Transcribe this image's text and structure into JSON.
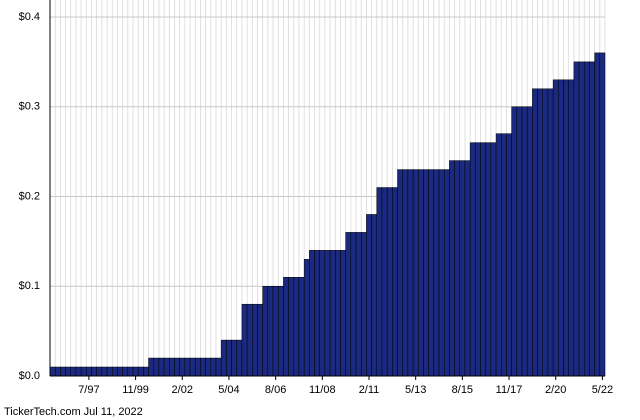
{
  "chart_data": {
    "type": "bar",
    "footer": "TickerTech.com  Jul 11, 2022",
    "categories": [
      null,
      null,
      null,
      null,
      null,
      null,
      null,
      "7/97",
      null,
      null,
      null,
      null,
      null,
      null,
      null,
      null,
      "11/99",
      null,
      null,
      null,
      null,
      null,
      null,
      null,
      null,
      "2/02",
      null,
      null,
      null,
      null,
      null,
      null,
      null,
      null,
      "5/04",
      null,
      null,
      null,
      null,
      null,
      null,
      null,
      null,
      "8/06",
      null,
      null,
      null,
      null,
      null,
      null,
      null,
      null,
      "11/08",
      null,
      null,
      null,
      null,
      null,
      null,
      null,
      null,
      "2/11",
      null,
      null,
      null,
      null,
      null,
      null,
      null,
      null,
      "5/13",
      null,
      null,
      null,
      null,
      null,
      null,
      null,
      null,
      "8/15",
      null,
      null,
      null,
      null,
      null,
      null,
      null,
      null,
      "11/17",
      null,
      null,
      null,
      null,
      null,
      null,
      null,
      null,
      "2/20",
      null,
      null,
      null,
      null,
      null,
      null,
      null,
      null,
      "5/22"
    ],
    "values": [
      0.01,
      0.01,
      0.01,
      0.01,
      0.01,
      0.01,
      0.01,
      0.01,
      0.01,
      0.01,
      0.01,
      0.01,
      0.01,
      0.01,
      0.01,
      0.01,
      0.01,
      0.01,
      0.01,
      0.02,
      0.02,
      0.02,
      0.02,
      0.02,
      0.02,
      0.02,
      0.02,
      0.02,
      0.02,
      0.02,
      0.02,
      0.02,
      0.02,
      0.04,
      0.04,
      0.04,
      0.04,
      0.08,
      0.08,
      0.08,
      0.08,
      0.1,
      0.1,
      0.1,
      0.1,
      0.11,
      0.11,
      0.11,
      0.11,
      0.13,
      0.14,
      0.14,
      0.14,
      0.14,
      0.14,
      0.14,
      0.14,
      0.16,
      0.16,
      0.16,
      0.16,
      0.18,
      0.18,
      0.21,
      0.21,
      0.21,
      0.21,
      0.23,
      0.23,
      0.23,
      0.23,
      0.23,
      0.23,
      0.23,
      0.23,
      0.23,
      0.23,
      0.24,
      0.24,
      0.24,
      0.24,
      0.26,
      0.26,
      0.26,
      0.26,
      0.26,
      0.27,
      0.27,
      0.27,
      0.3,
      0.3,
      0.3,
      0.3,
      0.32,
      0.32,
      0.32,
      0.32,
      0.33,
      0.33,
      0.33,
      0.33,
      0.35,
      0.35,
      0.35,
      0.35,
      0.36,
      0.36
    ],
    "color": "#1b2a80",
    "ylim": [
      0,
      0.4
    ],
    "yticks": [
      {
        "value": 0,
        "label": "$0.0"
      },
      {
        "value": 0.1,
        "label": "$0.1"
      },
      {
        "value": 0.2,
        "label": "$0.2"
      },
      {
        "value": 0.3,
        "label": "$0.3"
      },
      {
        "value": 0.4,
        "label": "$0.4"
      }
    ],
    "grid": true
  }
}
